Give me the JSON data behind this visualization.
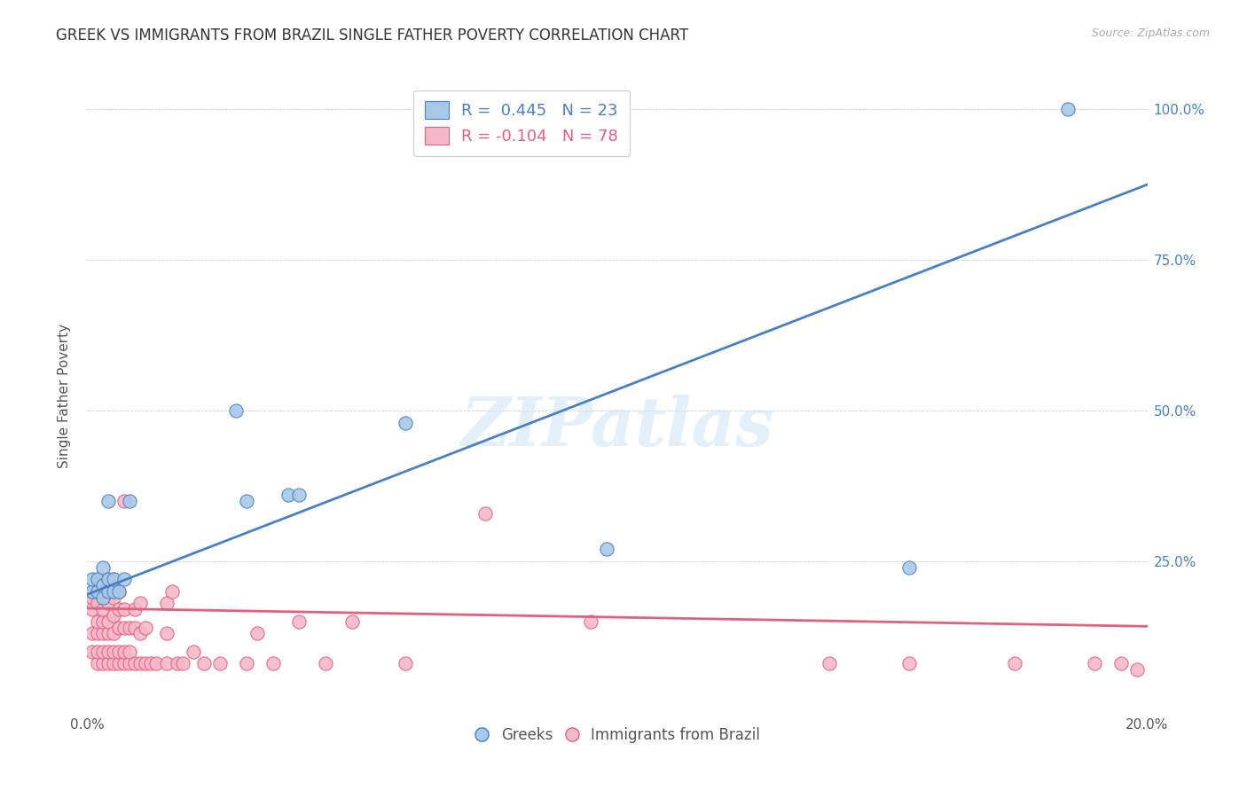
{
  "title": "GREEK VS IMMIGRANTS FROM BRAZIL SINGLE FATHER POVERTY CORRELATION CHART",
  "source": "Source: ZipAtlas.com",
  "ylabel": "Single Father Poverty",
  "xlim": [
    0.0,
    0.2
  ],
  "ylim": [
    0.0,
    1.05
  ],
  "yticks": [
    0.0,
    0.25,
    0.5,
    0.75,
    1.0
  ],
  "ytick_labels_right": [
    "",
    "25.0%",
    "50.0%",
    "75.0%",
    "100.0%"
  ],
  "xticks": [
    0.0,
    0.05,
    0.1,
    0.15,
    0.2
  ],
  "xtick_labels": [
    "0.0%",
    "",
    "",
    "",
    "20.0%"
  ],
  "greek_R": 0.445,
  "greek_N": 23,
  "brazil_R": -0.104,
  "brazil_N": 78,
  "greek_color": "#a8c8e8",
  "brazil_color": "#f5b8c8",
  "greek_line_color": "#4a7fc0",
  "brazil_line_color": "#e06080",
  "watermark": "ZIPatlas",
  "legend_greek": "Greeks",
  "legend_brazil": "Immigrants from Brazil",
  "greek_line_x0": 0.0,
  "greek_line_y0": 0.195,
  "greek_line_x1": 0.2,
  "greek_line_y1": 0.875,
  "brazil_line_x0": 0.0,
  "brazil_line_y0": 0.172,
  "brazil_line_x1": 0.2,
  "brazil_line_y1": 0.142,
  "greek_x": [
    0.001,
    0.001,
    0.002,
    0.002,
    0.003,
    0.003,
    0.003,
    0.004,
    0.004,
    0.004,
    0.005,
    0.005,
    0.006,
    0.007,
    0.008,
    0.028,
    0.03,
    0.038,
    0.04,
    0.06,
    0.098,
    0.155,
    0.185
  ],
  "greek_y": [
    0.2,
    0.22,
    0.2,
    0.22,
    0.19,
    0.21,
    0.24,
    0.2,
    0.22,
    0.35,
    0.2,
    0.22,
    0.2,
    0.22,
    0.35,
    0.5,
    0.35,
    0.36,
    0.36,
    0.48,
    0.27,
    0.24,
    1.0
  ],
  "brazil_x": [
    0.001,
    0.001,
    0.001,
    0.001,
    0.001,
    0.002,
    0.002,
    0.002,
    0.002,
    0.002,
    0.002,
    0.002,
    0.003,
    0.003,
    0.003,
    0.003,
    0.003,
    0.003,
    0.003,
    0.004,
    0.004,
    0.004,
    0.004,
    0.004,
    0.004,
    0.005,
    0.005,
    0.005,
    0.005,
    0.005,
    0.005,
    0.006,
    0.006,
    0.006,
    0.006,
    0.006,
    0.007,
    0.007,
    0.007,
    0.007,
    0.007,
    0.008,
    0.008,
    0.008,
    0.009,
    0.009,
    0.009,
    0.01,
    0.01,
    0.01,
    0.011,
    0.011,
    0.012,
    0.013,
    0.015,
    0.015,
    0.015,
    0.016,
    0.017,
    0.018,
    0.02,
    0.022,
    0.025,
    0.03,
    0.032,
    0.035,
    0.04,
    0.045,
    0.05,
    0.06,
    0.075,
    0.095,
    0.14,
    0.155,
    0.175,
    0.19,
    0.195,
    0.198
  ],
  "brazil_y": [
    0.17,
    0.19,
    0.1,
    0.13,
    0.2,
    0.08,
    0.1,
    0.13,
    0.15,
    0.18,
    0.2,
    0.22,
    0.08,
    0.1,
    0.13,
    0.15,
    0.17,
    0.2,
    0.22,
    0.08,
    0.1,
    0.13,
    0.15,
    0.18,
    0.2,
    0.08,
    0.1,
    0.13,
    0.16,
    0.19,
    0.22,
    0.08,
    0.1,
    0.14,
    0.17,
    0.2,
    0.08,
    0.1,
    0.14,
    0.17,
    0.35,
    0.08,
    0.1,
    0.14,
    0.08,
    0.14,
    0.17,
    0.08,
    0.13,
    0.18,
    0.08,
    0.14,
    0.08,
    0.08,
    0.08,
    0.13,
    0.18,
    0.2,
    0.08,
    0.08,
    0.1,
    0.08,
    0.08,
    0.08,
    0.13,
    0.08,
    0.15,
    0.08,
    0.15,
    0.08,
    0.33,
    0.15,
    0.08,
    0.08,
    0.08,
    0.08,
    0.08,
    0.07
  ],
  "title_fontsize": 12,
  "label_fontsize": 11,
  "tick_fontsize": 11,
  "source_fontsize": 9
}
